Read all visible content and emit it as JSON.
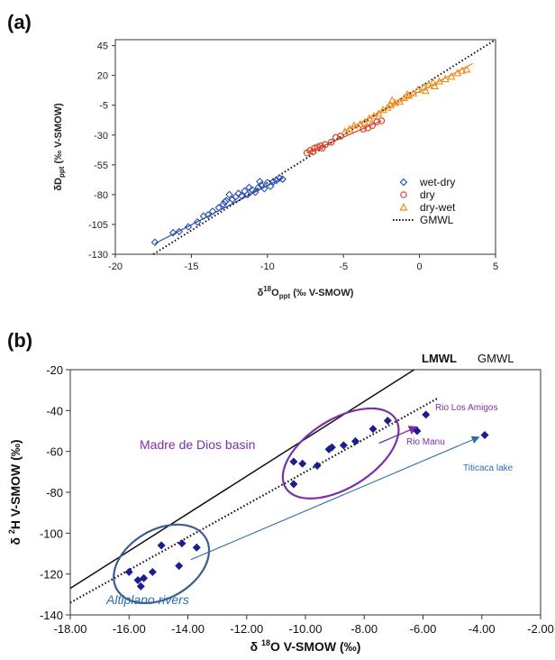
{
  "chart_data": [
    {
      "panel": "(a)",
      "type": "scatter",
      "xlabel": "δ¹⁸O_ppt (‰ V-SMOW)",
      "ylabel": "δD_ppt (‰ V-SMOW)",
      "xlim": [
        -20,
        5
      ],
      "ylim": [
        -130,
        50
      ],
      "xticks": [
        -20,
        -15,
        -10,
        -5,
        0,
        5
      ],
      "yticks": [
        45,
        20,
        -5,
        -30,
        -55,
        -80,
        -105,
        -130
      ],
      "grid": false,
      "legend_position": "bottom-right",
      "series": [
        {
          "name": "wet-dry",
          "marker": "diamond",
          "color": "#2b4fb5",
          "points": [
            [
              -17.4,
              -120
            ],
            [
              -16.2,
              -112
            ],
            [
              -15.8,
              -111
            ],
            [
              -15.2,
              -107
            ],
            [
              -14.6,
              -103
            ],
            [
              -14.2,
              -98
            ],
            [
              -13.9,
              -97
            ],
            [
              -13.6,
              -94
            ],
            [
              -13.2,
              -91
            ],
            [
              -12.9,
              -88
            ],
            [
              -12.7,
              -85
            ],
            [
              -12.5,
              -80
            ],
            [
              -12.3,
              -84
            ],
            [
              -12.1,
              -82
            ],
            [
              -11.9,
              -79
            ],
            [
              -11.7,
              -81
            ],
            [
              -11.5,
              -77
            ],
            [
              -11.3,
              -80
            ],
            [
              -11.0,
              -76
            ],
            [
              -10.8,
              -78
            ],
            [
              -10.6,
              -74
            ],
            [
              -10.4,
              -72
            ],
            [
              -10.2,
              -75
            ],
            [
              -10.0,
              -70
            ],
            [
              -9.8,
              -73
            ],
            [
              -9.6,
              -69
            ],
            [
              -9.4,
              -68
            ],
            [
              -9.2,
              -66
            ],
            [
              -9.0,
              -67
            ],
            [
              -12.8,
              -86
            ],
            [
              -11.2,
              -74
            ],
            [
              -10.5,
              -69
            ]
          ],
          "fit": [
            [
              -17.4,
              -121
            ],
            [
              -9.0,
              -66
            ]
          ]
        },
        {
          "name": "dry",
          "marker": "circle",
          "color": "#d9452b",
          "points": [
            [
              -7.4,
              -45
            ],
            [
              -7.2,
              -43
            ],
            [
              -7.0,
              -44
            ],
            [
              -6.9,
              -41
            ],
            [
              -6.7,
              -40
            ],
            [
              -6.5,
              -39
            ],
            [
              -6.4,
              -41
            ],
            [
              -6.2,
              -38
            ],
            [
              -5.8,
              -36
            ],
            [
              -5.5,
              -32
            ],
            [
              -5.2,
              -31
            ],
            [
              -3.7,
              -25
            ],
            [
              -3.4,
              -24
            ],
            [
              -3.1,
              -22
            ],
            [
              -2.8,
              -19
            ],
            [
              -2.5,
              -18
            ]
          ],
          "fit": [
            [
              -7.4,
              -45
            ],
            [
              -2.5,
              -18
            ]
          ]
        },
        {
          "name": "dry-wet",
          "marker": "triangle",
          "color": "#f08a1e",
          "points": [
            [
              -4.9,
              -27
            ],
            [
              -4.6,
              -25
            ],
            [
              -4.3,
              -22
            ],
            [
              -3.9,
              -21
            ],
            [
              -3.6,
              -19
            ],
            [
              -3.3,
              -16
            ],
            [
              -3.0,
              -14
            ],
            [
              -2.7,
              -12
            ],
            [
              -2.4,
              -9
            ],
            [
              -2.1,
              -7
            ],
            [
              -1.9,
              -5
            ],
            [
              -1.6,
              -3
            ],
            [
              -1.3,
              -2
            ],
            [
              -1.0,
              1
            ],
            [
              -0.7,
              3
            ],
            [
              -0.4,
              5
            ],
            [
              -0.1,
              8
            ],
            [
              0.3,
              10
            ],
            [
              0.6,
              12
            ],
            [
              0.9,
              14
            ],
            [
              1.3,
              15
            ],
            [
              1.7,
              17
            ],
            [
              2.1,
              19
            ],
            [
              2.5,
              22
            ],
            [
              2.8,
              24
            ],
            [
              3.1,
              25
            ],
            [
              -1.8,
              -1
            ],
            [
              -0.8,
              4
            ],
            [
              0.4,
              7
            ],
            [
              1.0,
              11
            ]
          ],
          "fit": [
            [
              -5.0,
              -27
            ],
            [
              3.5,
              30
            ]
          ]
        },
        {
          "name": "GMWL",
          "style": "dotted",
          "color": "#111111",
          "line": [
            [
              -17.5,
              -130
            ],
            [
              5,
              50
            ]
          ]
        }
      ]
    },
    {
      "panel": "(b)",
      "type": "scatter",
      "xlabel": "δ ¹⁸O V-SMOW (‰)",
      "ylabel": "δ ²H V-SMOW (‰)",
      "xlim": [
        -18,
        -2
      ],
      "ylim": [
        -140,
        -20
      ],
      "xticks": [
        "-18.00",
        "-16.00",
        "-14.00",
        "-12.00",
        "-10.00",
        "-8.00",
        "-6.00",
        "-4.00",
        "-2.00"
      ],
      "yticks": [
        -20,
        -40,
        -60,
        -80,
        -100,
        -120,
        -140
      ],
      "grid": false,
      "lines": [
        {
          "name": "LMWL",
          "style": "solid",
          "color": "#111111",
          "line": [
            [
              -18,
              -127
            ],
            [
              -6.3,
              -20
            ]
          ]
        },
        {
          "name": "GMWL",
          "style": "dotted",
          "color": "#111111",
          "line": [
            [
              -18,
              -134
            ],
            [
              -5.5,
              -34
            ]
          ]
        }
      ],
      "points": {
        "marker": "diamond",
        "color": "#1b1e8f",
        "values": [
          [
            -16.0,
            -119
          ],
          [
            -15.7,
            -123
          ],
          [
            -15.6,
            -126
          ],
          [
            -15.5,
            -122
          ],
          [
            -15.2,
            -119
          ],
          [
            -14.9,
            -106
          ],
          [
            -14.3,
            -116
          ],
          [
            -14.2,
            -105
          ],
          [
            -13.7,
            -107
          ],
          [
            -10.4,
            -76
          ],
          [
            -10.4,
            -65
          ],
          [
            -10.1,
            -66
          ],
          [
            -9.6,
            -67
          ],
          [
            -9.2,
            -59
          ],
          [
            -9.1,
            -58
          ],
          [
            -8.7,
            -57
          ],
          [
            -8.3,
            -55
          ],
          [
            -7.7,
            -49
          ],
          [
            -7.2,
            -45
          ],
          [
            -6.2,
            -50
          ],
          [
            -5.9,
            -42
          ],
          [
            -3.9,
            -52
          ]
        ]
      },
      "annotations": {
        "madre_de_dios": "Madre de Dios basin",
        "rio_los_amigos": "Rio Los Amigos",
        "rio_manu": "Rio Manu",
        "titicaca": "Titicaca lake",
        "altiplano": "Altiplano rivers",
        "lmwl": "LMWL",
        "gmwl": "GMWL"
      },
      "annotation_colors": {
        "purple": "#7b2fa8",
        "blue": "#2f6da8",
        "navy": "#3b5f8f"
      }
    }
  ]
}
